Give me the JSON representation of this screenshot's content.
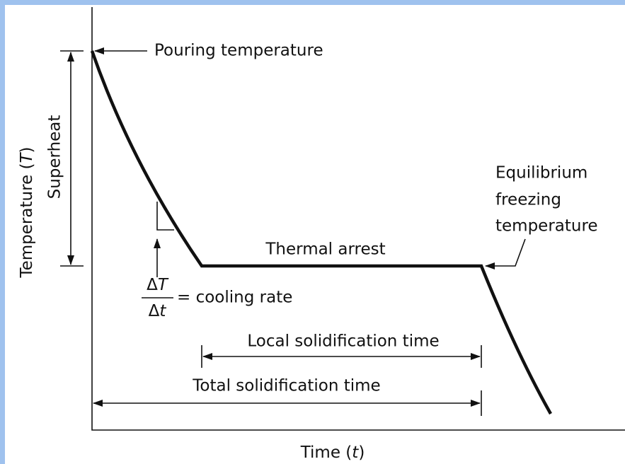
{
  "axis_labels": {
    "y": [
      "Temperature (",
      "T",
      ")"
    ],
    "x": [
      "Time (",
      "t",
      ")"
    ]
  },
  "annotations": {
    "superheat": "Superheat",
    "pouring": "Pouring temperature",
    "thermal_arrest": "Thermal arrest",
    "equilibrium": [
      "Equilibrium",
      "freezing",
      "temperature"
    ],
    "cooling_rate": {
      "numerator": [
        "Δ",
        "T"
      ],
      "denominator": [
        "Δ",
        "t"
      ],
      "text": "= cooling rate"
    },
    "local_time": "Local solidification time",
    "total_time": "Total solidification time"
  }
}
